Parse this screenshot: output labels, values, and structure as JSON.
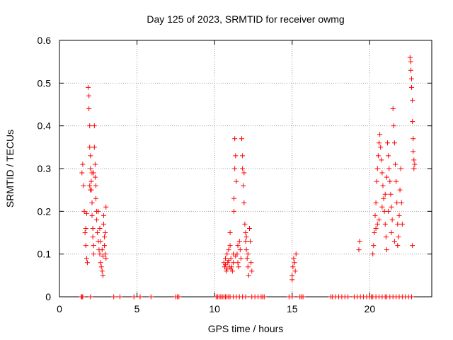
{
  "chart_data": {
    "type": "scatter",
    "title": "Day 125 of 2023, SRMTID for receiver owmg",
    "xlabel": "GPS time / hours",
    "ylabel": "SRMTID / TECUs",
    "xlim": [
      0,
      24
    ],
    "ylim": [
      0,
      0.6
    ],
    "x_ticks": [
      0,
      5,
      10,
      15,
      20
    ],
    "x_tick_labels": [
      "0",
      "5",
      "10",
      "15",
      "20"
    ],
    "y_ticks": [
      0,
      0.1,
      0.2,
      0.3,
      0.4,
      0.5,
      0.6
    ],
    "y_tick_labels": [
      "0",
      "0.1",
      "0.2",
      "0.3",
      "0.4",
      "0.5",
      "0.6"
    ],
    "grid": true,
    "marker": "+",
    "series": [
      {
        "name": "SRMTID",
        "color": "#ff0000",
        "points": [
          [
            1.45,
            0.29
          ],
          [
            1.5,
            0.31
          ],
          [
            1.55,
            0.26
          ],
          [
            1.6,
            0.2
          ],
          [
            1.65,
            0.15
          ],
          [
            1.7,
            0.12
          ],
          [
            1.75,
            0.09
          ],
          [
            1.8,
            0.08
          ],
          [
            1.85,
            0.49
          ],
          [
            1.9,
            0.47
          ],
          [
            1.9,
            0.44
          ],
          [
            1.95,
            0.4
          ],
          [
            1.95,
            0.35
          ],
          [
            2.0,
            0.33
          ],
          [
            2.0,
            0.3
          ],
          [
            2.05,
            0.27
          ],
          [
            2.05,
            0.25
          ],
          [
            2.1,
            0.22
          ],
          [
            2.1,
            0.19
          ],
          [
            2.15,
            0.16
          ],
          [
            2.15,
            0.14
          ],
          [
            2.2,
            0.12
          ],
          [
            2.2,
            0.1
          ],
          [
            2.25,
            0.35
          ],
          [
            2.25,
            0.4
          ],
          [
            2.3,
            0.31
          ],
          [
            2.3,
            0.28
          ],
          [
            2.35,
            0.26
          ],
          [
            2.35,
            0.23
          ],
          [
            2.4,
            0.2
          ],
          [
            2.4,
            0.18
          ],
          [
            2.45,
            0.15
          ],
          [
            2.5,
            0.13
          ],
          [
            2.55,
            0.11
          ],
          [
            2.6,
            0.1
          ],
          [
            2.65,
            0.08
          ],
          [
            2.7,
            0.07
          ],
          [
            2.75,
            0.06
          ],
          [
            2.8,
            0.05
          ],
          [
            2.85,
            0.19
          ],
          [
            2.85,
            0.17
          ],
          [
            2.9,
            0.14
          ],
          [
            2.9,
            0.12
          ],
          [
            2.95,
            0.1
          ],
          [
            3.0,
            0.21
          ],
          [
            3.0,
            0.09
          ],
          [
            1.7,
            0.16
          ],
          [
            1.75,
            0.195
          ],
          [
            1.95,
            0.26
          ],
          [
            2.0,
            0.25
          ],
          [
            2.1,
            0.29
          ],
          [
            2.2,
            0.29
          ],
          [
            2.5,
            0.2
          ],
          [
            2.6,
            0.16
          ],
          [
            2.65,
            0.13
          ],
          [
            2.75,
            0.11
          ],
          [
            2.8,
            0.095
          ],
          [
            2.95,
            0.15
          ],
          [
            10.6,
            0.08
          ],
          [
            10.65,
            0.07
          ],
          [
            10.7,
            0.09
          ],
          [
            10.75,
            0.06
          ],
          [
            10.8,
            0.1
          ],
          [
            10.85,
            0.08
          ],
          [
            10.9,
            0.11
          ],
          [
            10.95,
            0.07
          ],
          [
            11.0,
            0.15
          ],
          [
            11.0,
            0.12
          ],
          [
            11.05,
            0.09
          ],
          [
            11.1,
            0.07
          ],
          [
            11.15,
            0.06
          ],
          [
            11.2,
            0.08
          ],
          [
            11.25,
            0.2
          ],
          [
            11.25,
            0.23
          ],
          [
            11.3,
            0.3
          ],
          [
            11.3,
            0.37
          ],
          [
            11.35,
            0.33
          ],
          [
            11.4,
            0.27
          ],
          [
            11.45,
            0.1
          ],
          [
            11.5,
            0.08
          ],
          [
            11.55,
            0.07
          ],
          [
            11.6,
            0.13
          ],
          [
            11.65,
            0.11
          ],
          [
            11.7,
            0.09
          ],
          [
            11.75,
            0.37
          ],
          [
            11.8,
            0.33
          ],
          [
            11.8,
            0.3
          ],
          [
            11.85,
            0.26
          ],
          [
            11.9,
            0.22
          ],
          [
            11.95,
            0.17
          ],
          [
            12.0,
            0.15
          ],
          [
            12.0,
            0.13
          ],
          [
            12.05,
            0.11
          ],
          [
            12.1,
            0.09
          ],
          [
            12.15,
            0.07
          ],
          [
            12.2,
            0.05
          ],
          [
            12.25,
            0.16
          ],
          [
            12.3,
            0.13
          ],
          [
            12.35,
            0.08
          ],
          [
            12.4,
            0.06
          ],
          [
            10.7,
            0.075
          ],
          [
            10.8,
            0.065
          ],
          [
            10.9,
            0.085
          ],
          [
            11.05,
            0.065
          ],
          [
            11.2,
            0.1
          ],
          [
            11.35,
            0.095
          ],
          [
            11.5,
            0.12
          ],
          [
            11.9,
            0.29
          ],
          [
            12.05,
            0.14
          ],
          [
            12.15,
            0.1
          ],
          [
            15.0,
            0.05
          ],
          [
            15.05,
            0.07
          ],
          [
            15.1,
            0.09
          ],
          [
            15.15,
            0.08
          ],
          [
            15.2,
            0.06
          ],
          [
            15.25,
            0.1
          ],
          [
            15.0,
            0.04
          ],
          [
            19.3,
            0.11
          ],
          [
            19.35,
            0.13
          ],
          [
            20.2,
            0.1
          ],
          [
            20.25,
            0.12
          ],
          [
            20.3,
            0.15
          ],
          [
            20.35,
            0.19
          ],
          [
            20.4,
            0.22
          ],
          [
            20.45,
            0.27
          ],
          [
            20.5,
            0.3
          ],
          [
            20.55,
            0.33
          ],
          [
            20.6,
            0.36
          ],
          [
            20.65,
            0.38
          ],
          [
            20.7,
            0.35
          ],
          [
            20.75,
            0.32
          ],
          [
            20.8,
            0.29
          ],
          [
            20.85,
            0.26
          ],
          [
            20.9,
            0.23
          ],
          [
            20.95,
            0.2
          ],
          [
            21.0,
            0.17
          ],
          [
            21.05,
            0.14
          ],
          [
            21.1,
            0.11
          ],
          [
            21.15,
            0.36
          ],
          [
            21.2,
            0.33
          ],
          [
            21.25,
            0.3
          ],
          [
            21.3,
            0.27
          ],
          [
            21.35,
            0.24
          ],
          [
            21.4,
            0.21
          ],
          [
            21.45,
            0.18
          ],
          [
            21.5,
            0.44
          ],
          [
            21.55,
            0.4
          ],
          [
            21.6,
            0.36
          ],
          [
            21.65,
            0.31
          ],
          [
            21.7,
            0.27
          ],
          [
            21.75,
            0.22
          ],
          [
            21.8,
            0.17
          ],
          [
            21.85,
            0.14
          ],
          [
            21.9,
            0.19
          ],
          [
            21.95,
            0.25
          ],
          [
            22.0,
            0.3
          ],
          [
            22.05,
            0.22
          ],
          [
            22.1,
            0.17
          ],
          [
            20.4,
            0.16
          ],
          [
            20.6,
            0.18
          ],
          [
            20.8,
            0.21
          ],
          [
            21.0,
            0.24
          ],
          [
            21.2,
            0.2
          ],
          [
            21.4,
            0.15
          ],
          [
            21.6,
            0.13
          ],
          [
            21.8,
            0.12
          ],
          [
            20.5,
            0.17
          ],
          [
            21.1,
            0.28
          ],
          [
            22.6,
            0.56
          ],
          [
            22.65,
            0.55
          ],
          [
            22.65,
            0.53
          ],
          [
            22.7,
            0.51
          ],
          [
            22.7,
            0.49
          ],
          [
            22.75,
            0.46
          ],
          [
            22.75,
            0.41
          ],
          [
            22.8,
            0.37
          ],
          [
            22.8,
            0.34
          ],
          [
            22.85,
            0.32
          ],
          [
            22.85,
            0.3
          ],
          [
            22.9,
            0.31
          ],
          [
            22.75,
            0.12
          ]
        ]
      }
    ],
    "baseline_markers_x": [
      1.4,
      1.45,
      1.5,
      2.0,
      3.5,
      3.9,
      4.8,
      5.2,
      5.9,
      7.5,
      7.6,
      7.7,
      10.1,
      10.2,
      10.3,
      10.4,
      10.5,
      10.6,
      10.7,
      10.8,
      10.9,
      11.0,
      11.2,
      11.4,
      11.6,
      11.8,
      12.0,
      12.4,
      12.6,
      12.8,
      13.0,
      13.1,
      13.2,
      14.8,
      15.0,
      15.5,
      15.6,
      15.7,
      17.5,
      17.6,
      17.8,
      18.0,
      18.2,
      18.4,
      18.6,
      19.0,
      19.2,
      19.4,
      19.6,
      19.8,
      20.0,
      20.1,
      20.2,
      20.4,
      20.6,
      20.8,
      21.0,
      21.1,
      21.3,
      21.5,
      21.7,
      21.9,
      22.1,
      22.3,
      22.5,
      22.7
    ]
  }
}
